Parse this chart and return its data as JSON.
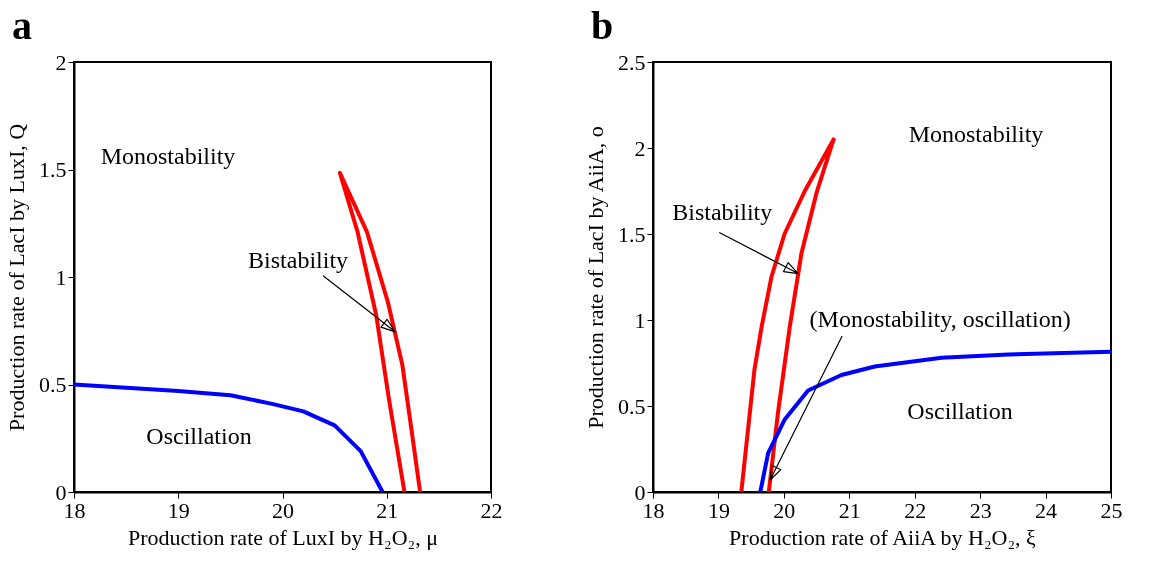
{
  "chart_data": [
    {
      "type": "line",
      "title": "a",
      "xlabel": "Production rate of LuxI by H₂O₂, μ",
      "ylabel": "Production rate of LacI by LuxI, Q",
      "xlim": [
        18,
        22
      ],
      "ylim": [
        0,
        2
      ],
      "xticks": [
        18,
        19,
        20,
        21,
        22
      ],
      "yticks": [
        0,
        0.5,
        1,
        1.5,
        2
      ],
      "series": [
        {
          "color": "#0000ff",
          "x": [
            18,
            19,
            19.5,
            19.9,
            20.2,
            20.5,
            20.75,
            20.96
          ],
          "values": [
            0.5,
            0.47,
            0.45,
            0.41,
            0.375,
            0.31,
            0.19,
            0
          ]
        },
        {
          "color": "#ff0000",
          "x": [
            21.32,
            21.24,
            21.15,
            21.01,
            20.81,
            20.55,
            20.72,
            20.9,
            21.02,
            21.17
          ],
          "values": [
            0,
            0.28,
            0.59,
            0.885,
            1.21,
            1.485,
            1.21,
            0.82,
            0.435,
            0
          ]
        }
      ],
      "annotations": [
        "Monostability",
        "Oscillation",
        {
          "text": "Bistability",
          "x": 21.08,
          "y": 0.745
        }
      ]
    },
    {
      "type": "line",
      "title": "b",
      "xlabel": "Production rate of AiiA by H₂O₂, ξ",
      "ylabel": "Production rate of LacI by AiiA, o",
      "xlim": [
        18,
        25
      ],
      "ylim": [
        0,
        2.5
      ],
      "xticks": [
        18,
        19,
        20,
        21,
        22,
        23,
        24,
        25
      ],
      "yticks": [
        0,
        0.5,
        1,
        1.5,
        2,
        2.5
      ],
      "series": [
        {
          "color": "#ff0000",
          "x": [
            19.35,
            19.55,
            19.66,
            19.81,
            20.01,
            20.32,
            20.76,
            20.5,
            20.27,
            20.09,
            19.91,
            19.77
          ],
          "values": [
            0,
            0.71,
            0.96,
            1.25,
            1.5,
            1.75,
            2.05,
            1.74,
            1.39,
            0.96,
            0.46,
            0
          ]
        },
        {
          "color": "#0000ff",
          "x": [
            19.64,
            19.76,
            20.01,
            20.37,
            20.88,
            21.39,
            22.41,
            23.43,
            25
          ],
          "values": [
            0,
            0.226,
            0.42,
            0.59,
            0.68,
            0.73,
            0.78,
            0.8,
            0.815
          ]
        }
      ],
      "annotations": [
        "Monostability",
        {
          "text": "Bistability",
          "x": 20.22,
          "y": 1.27
        },
        {
          "text": "(Monostability, oscillation)",
          "x": 19.79,
          "y": 0.07
        },
        "Oscillation"
      ]
    }
  ]
}
